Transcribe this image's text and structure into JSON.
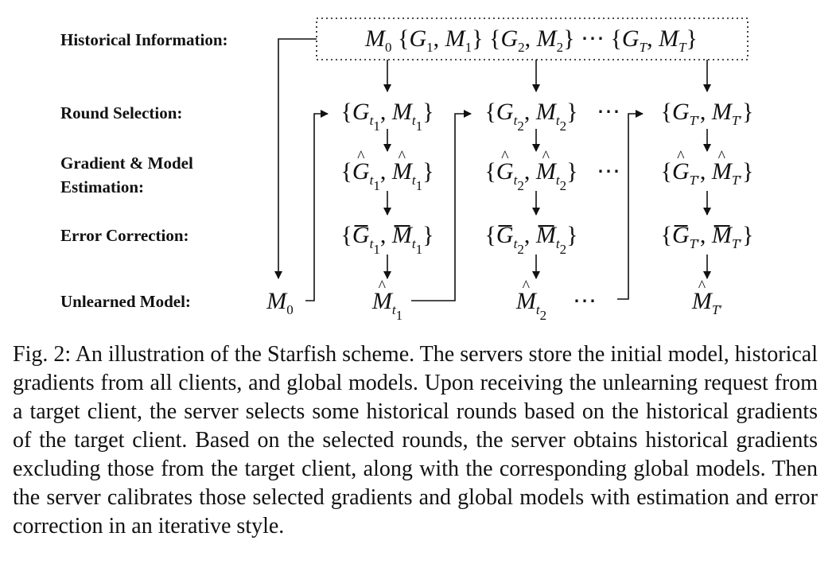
{
  "row_labels": {
    "historical": "Historical Information:",
    "round_selection": "Round Selection:",
    "estimation": "Gradient & Model\nEstimation:",
    "error_correction": "Error Correction:",
    "unlearned": "Unlearned Model:"
  },
  "ellipsis": "⋯",
  "caption": "Fig. 2: An illustration of the Starfish scheme. The servers store the initial model, historical gradients from all clients, and global models. Upon receiving the unlearning request from a target client, the server selects some historical rounds based on the historical gradients of the target client. Based on the selected rounds, the server obtains historical gradients excluding those from the target client, along with the corresponding global models. Then the server calibrates those selected gradients and global models with estimation and error correction in an iterative style."
}
